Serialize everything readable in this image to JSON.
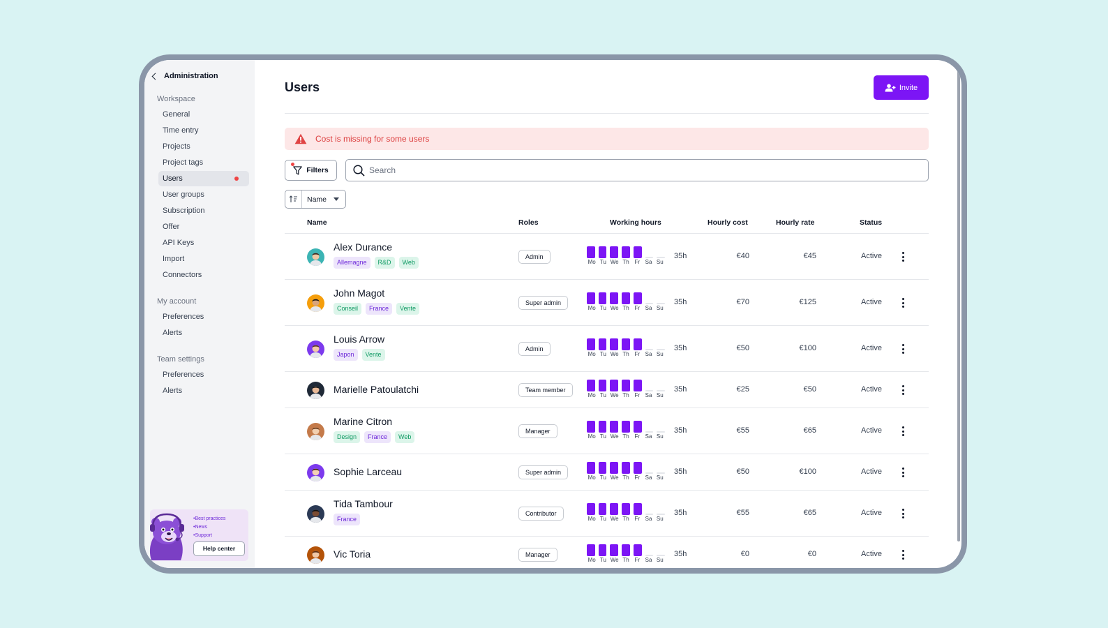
{
  "sidebar": {
    "back_label": "Administration",
    "sections": [
      {
        "title": "Workspace",
        "items": [
          "General",
          "Time entry",
          "Projects",
          "Project tags",
          "Users",
          "User groups",
          "Subscription",
          "Offer",
          "API Keys",
          "Import",
          "Connectors"
        ]
      },
      {
        "title": "My account",
        "items": [
          "Preferences",
          "Alerts"
        ]
      },
      {
        "title": "Team settings",
        "items": [
          "Preferences",
          "Alerts"
        ]
      }
    ],
    "active_item": "Users",
    "help": {
      "links": [
        "•Best practices",
        "•News",
        "•Support"
      ],
      "button": "Help center"
    }
  },
  "header": {
    "title": "Users",
    "invite_label": "Invite"
  },
  "alert": {
    "text": "Cost is missing for some users"
  },
  "toolbar": {
    "filters_label": "Filters",
    "search_placeholder": "Search",
    "sort_label": "Name"
  },
  "table": {
    "columns": [
      "Name",
      "Roles",
      "Working hours",
      "Hourly cost",
      "Hourly rate",
      "Status"
    ],
    "days": [
      "Mo",
      "Tu",
      "We",
      "Th",
      "Fr",
      "Sa",
      "Su"
    ],
    "rows": [
      {
        "name": "Alex Durance",
        "tags": [
          {
            "label": "Allemagne",
            "color": "purple"
          },
          {
            "label": "R&D",
            "color": "green"
          },
          {
            "label": "Web",
            "color": "green"
          }
        ],
        "role": "Admin",
        "hours": "35h",
        "cost": "€40",
        "rate": "€45",
        "status": "Active"
      },
      {
        "name": "John Magot",
        "tags": [
          {
            "label": "Conseil",
            "color": "green"
          },
          {
            "label": "France",
            "color": "purple"
          },
          {
            "label": "Vente",
            "color": "green"
          }
        ],
        "role": "Super admin",
        "hours": "35h",
        "cost": "€70",
        "rate": "€125",
        "status": "Active"
      },
      {
        "name": "Louis Arrow",
        "tags": [
          {
            "label": "Japon",
            "color": "purple"
          },
          {
            "label": "Vente",
            "color": "green"
          }
        ],
        "role": "Admin",
        "hours": "35h",
        "cost": "€50",
        "rate": "€100",
        "status": "Active"
      },
      {
        "name": "Marielle Patoulatchi",
        "tags": [],
        "role": "Team member",
        "hours": "35h",
        "cost": "€25",
        "rate": "€50",
        "status": "Active"
      },
      {
        "name": "Marine Citron",
        "tags": [
          {
            "label": "Design",
            "color": "green"
          },
          {
            "label": "France",
            "color": "purple"
          },
          {
            "label": "Web",
            "color": "green"
          }
        ],
        "role": "Manager",
        "hours": "35h",
        "cost": "€55",
        "rate": "€65",
        "status": "Active"
      },
      {
        "name": "Sophie Larceau",
        "tags": [],
        "role": "Super admin",
        "hours": "35h",
        "cost": "€50",
        "rate": "€100",
        "status": "Active"
      },
      {
        "name": "Tida Tambour",
        "tags": [
          {
            "label": "France",
            "color": "purple"
          }
        ],
        "role": "Contributor",
        "hours": "35h",
        "cost": "€55",
        "rate": "€65",
        "status": "Active"
      },
      {
        "name": "Vic Toria",
        "tags": [],
        "role": "Manager",
        "hours": "35h",
        "cost": "€0",
        "rate": "€0",
        "status": "Active"
      }
    ]
  },
  "colors": {
    "accent": "#7c15f5",
    "alert_bg": "#fde7e7",
    "alert_text": "#dc3e3e",
    "page_bg": "#d9f3f3"
  }
}
